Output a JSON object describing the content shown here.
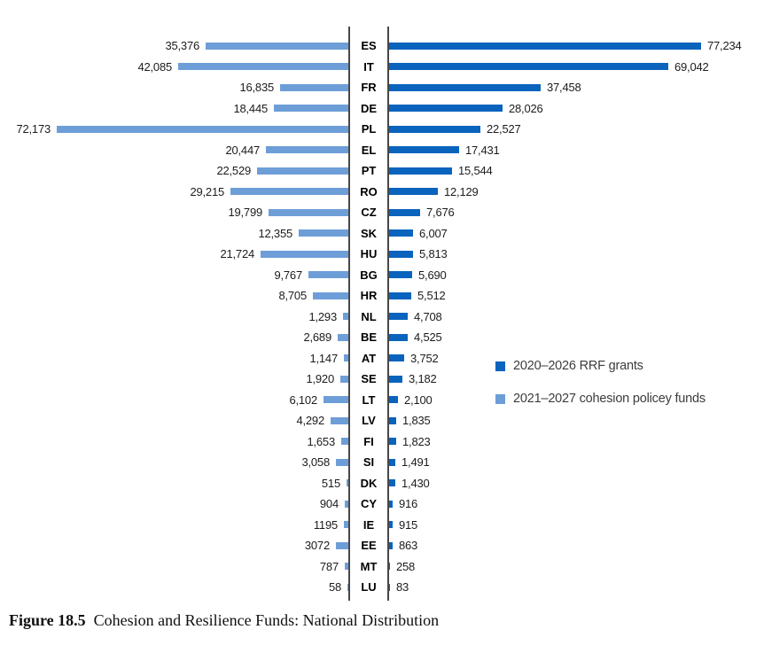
{
  "figure": {
    "caption_label": "Figure 18.5",
    "caption_title": "Cohesion and Resilience Funds: National Distribution"
  },
  "legend": {
    "items": [
      {
        "label": "2020–2026 RRF grants",
        "color": "#0a63bd",
        "series": "rrf"
      },
      {
        "label": "2021–2027 cohesion policey funds",
        "color": "#6d9ed8",
        "series": "cohesion"
      }
    ]
  },
  "chart_data": {
    "type": "bar",
    "orientation": "horizontal-bidirectional",
    "title": "Cohesion and Resilience Funds: National Distribution",
    "categories": [
      "ES",
      "IT",
      "FR",
      "DE",
      "PL",
      "EL",
      "PT",
      "RO",
      "CZ",
      "SK",
      "HU",
      "BG",
      "HR",
      "NL",
      "BE",
      "AT",
      "SE",
      "LT",
      "LV",
      "FI",
      "SI",
      "DK",
      "CY",
      "IE",
      "EE",
      "MT",
      "LU"
    ],
    "series": [
      {
        "name": "2020–2026 RRF grants",
        "side": "right",
        "color": "#0a63bd",
        "values": [
          77234,
          69042,
          37458,
          28026,
          22527,
          17431,
          15544,
          12129,
          7676,
          6007,
          5813,
          5690,
          5512,
          4708,
          4525,
          3752,
          3182,
          2100,
          1835,
          1823,
          1491,
          1430,
          916,
          915,
          863,
          258,
          83
        ],
        "labels": [
          "77,234",
          "69,042",
          "37,458",
          "28,026",
          "22,527",
          "17,431",
          "15,544",
          "12,129",
          "7,676",
          "6,007",
          "5,813",
          "5,690",
          "5,512",
          "4,708",
          "4,525",
          "3,752",
          "3,182",
          "2,100",
          "1,835",
          "1,823",
          "1,491",
          "1,430",
          "916",
          "915",
          "863",
          "258",
          "83"
        ]
      },
      {
        "name": "2021–2027 cohesion policey funds",
        "side": "left",
        "color": "#6d9ed8",
        "values": [
          35376,
          42085,
          16835,
          18445,
          72173,
          20447,
          22529,
          29215,
          19799,
          12355,
          21724,
          9767,
          8705,
          1293,
          2689,
          1147,
          1920,
          6102,
          4292,
          1653,
          3058,
          515,
          904,
          1195,
          3072,
          787,
          58
        ],
        "labels": [
          "35,376",
          "42,085",
          "16,835",
          "18,445",
          "72,173",
          "20,447",
          "22,529",
          "29,215",
          "19,799",
          "12,355",
          "21,724",
          "9,767",
          "8,705",
          "1,293",
          "2,689",
          "1,147",
          "1,920",
          "6,102",
          "4,292",
          "1,653",
          "3,058",
          "515",
          "904",
          "1195",
          "3072",
          "787",
          "58"
        ]
      }
    ],
    "axis": {
      "center_category_labels": true,
      "rail_color": "#474747",
      "gridlines": false,
      "value_labels_shown": true
    },
    "legend_position": "middle-right"
  }
}
